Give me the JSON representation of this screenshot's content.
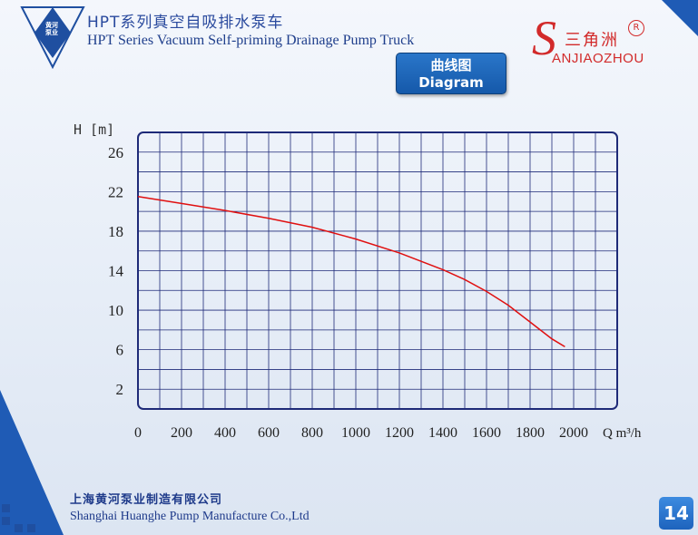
{
  "header": {
    "logo_text_line1": "黄河",
    "logo_text_line2": "泵业",
    "title_cn": "HPT系列真空自吸排水泵车",
    "title_en": "HPT Series Vacuum Self-priming Drainage Pump Truck"
  },
  "brand": {
    "s_letter": "S",
    "name_cn": "三角洲",
    "reg_mark": "R",
    "name_en": "ANJIAOZHOU"
  },
  "diagram_button": {
    "label_cn": "曲线图",
    "label_en": "Diagram"
  },
  "footer": {
    "company_cn": "上海黄河泵业制造有限公司",
    "company_en": "Shanghai Huanghe Pump Manufacture Co.,Ltd",
    "page_number": "14"
  },
  "colors": {
    "accent_blue": "#1559aa",
    "curve_red": "#e01010",
    "grid_blue": "#1e2a78",
    "brand_red": "#d22a2a"
  },
  "chart_data": {
    "type": "line",
    "title": "",
    "ylabel": "H [m]",
    "xlabel": "Q m³/h",
    "xlim": [
      0,
      2200
    ],
    "ylim": [
      0,
      28
    ],
    "x_ticks": [
      0,
      200,
      400,
      600,
      800,
      1000,
      1200,
      1400,
      1600,
      1800,
      2000
    ],
    "y_ticks": [
      2,
      6,
      10,
      14,
      18,
      22,
      26
    ],
    "grid": true,
    "series": [
      {
        "x": [
          0,
          200,
          400,
          600,
          800,
          1000,
          1200,
          1400,
          1500,
          1600,
          1700,
          1800,
          1900,
          1960
        ],
        "y": [
          21.5,
          20.8,
          20.1,
          19.3,
          18.4,
          17.2,
          15.8,
          14.1,
          13.1,
          11.9,
          10.5,
          8.8,
          7.1,
          6.3
        ]
      }
    ]
  }
}
